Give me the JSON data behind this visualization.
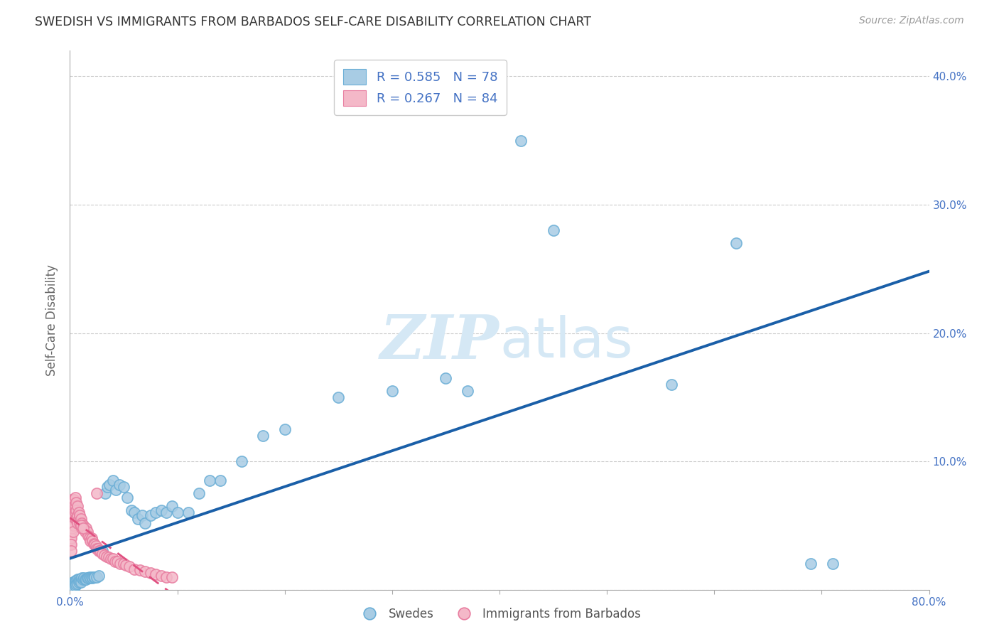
{
  "title": "SWEDISH VS IMMIGRANTS FROM BARBADOS SELF-CARE DISABILITY CORRELATION CHART",
  "source": "Source: ZipAtlas.com",
  "ylabel": "Self-Care Disability",
  "xlim": [
    0.0,
    0.8
  ],
  "ylim": [
    0.0,
    0.42
  ],
  "xticks": [
    0.0,
    0.1,
    0.2,
    0.3,
    0.4,
    0.5,
    0.6,
    0.7,
    0.8
  ],
  "xticklabels": [
    "0.0%",
    "",
    "",
    "",
    "",
    "",
    "",
    "",
    "80.0%"
  ],
  "yticks": [
    0.0,
    0.1,
    0.2,
    0.3,
    0.4
  ],
  "right_yticklabels": [
    "",
    "10.0%",
    "20.0%",
    "30.0%",
    "40.0%"
  ],
  "blue_color": "#a8cce4",
  "blue_edge_color": "#6aaed6",
  "pink_color": "#f4b8c8",
  "pink_edge_color": "#e87da0",
  "blue_line_color": "#1a5fa8",
  "pink_line_color": "#e05080",
  "watermark_color": "#d5e8f5",
  "swedes_x": [
    0.001,
    0.001,
    0.001,
    0.001,
    0.002,
    0.002,
    0.002,
    0.002,
    0.003,
    0.003,
    0.003,
    0.004,
    0.004,
    0.004,
    0.005,
    0.005,
    0.005,
    0.006,
    0.006,
    0.007,
    0.007,
    0.008,
    0.008,
    0.009,
    0.01,
    0.01,
    0.011,
    0.012,
    0.013,
    0.014,
    0.015,
    0.016,
    0.017,
    0.018,
    0.019,
    0.02,
    0.021,
    0.022,
    0.023,
    0.025,
    0.027,
    0.03,
    0.033,
    0.035,
    0.037,
    0.04,
    0.043,
    0.046,
    0.05,
    0.053,
    0.057,
    0.06,
    0.063,
    0.067,
    0.07,
    0.075,
    0.08,
    0.085,
    0.09,
    0.095,
    0.1,
    0.11,
    0.12,
    0.13,
    0.14,
    0.16,
    0.18,
    0.2,
    0.25,
    0.3,
    0.35,
    0.37,
    0.42,
    0.45,
    0.56,
    0.62,
    0.69,
    0.71
  ],
  "swedes_y": [
    0.004,
    0.003,
    0.002,
    0.001,
    0.005,
    0.004,
    0.003,
    0.002,
    0.006,
    0.005,
    0.003,
    0.006,
    0.004,
    0.002,
    0.007,
    0.005,
    0.003,
    0.007,
    0.004,
    0.008,
    0.005,
    0.008,
    0.006,
    0.007,
    0.008,
    0.006,
    0.009,
    0.008,
    0.009,
    0.008,
    0.008,
    0.009,
    0.009,
    0.01,
    0.009,
    0.01,
    0.009,
    0.01,
    0.01,
    0.01,
    0.011,
    0.03,
    0.075,
    0.08,
    0.082,
    0.085,
    0.078,
    0.082,
    0.08,
    0.072,
    0.062,
    0.06,
    0.055,
    0.058,
    0.052,
    0.058,
    0.06,
    0.062,
    0.06,
    0.065,
    0.06,
    0.06,
    0.075,
    0.085,
    0.085,
    0.1,
    0.12,
    0.125,
    0.15,
    0.155,
    0.165,
    0.155,
    0.35,
    0.28,
    0.16,
    0.27,
    0.02,
    0.02
  ],
  "barbados_x": [
    0.0005,
    0.0005,
    0.0007,
    0.001,
    0.001,
    0.001,
    0.001,
    0.001,
    0.001,
    0.001,
    0.0015,
    0.0015,
    0.002,
    0.002,
    0.002,
    0.002,
    0.002,
    0.003,
    0.003,
    0.003,
    0.003,
    0.003,
    0.003,
    0.004,
    0.004,
    0.004,
    0.005,
    0.005,
    0.005,
    0.005,
    0.006,
    0.006,
    0.006,
    0.007,
    0.007,
    0.007,
    0.008,
    0.008,
    0.009,
    0.009,
    0.01,
    0.01,
    0.011,
    0.011,
    0.012,
    0.013,
    0.014,
    0.015,
    0.016,
    0.017,
    0.018,
    0.019,
    0.02,
    0.021,
    0.022,
    0.023,
    0.024,
    0.025,
    0.026,
    0.027,
    0.028,
    0.03,
    0.032,
    0.034,
    0.036,
    0.038,
    0.04,
    0.042,
    0.044,
    0.047,
    0.05,
    0.052,
    0.055,
    0.06,
    0.065,
    0.07,
    0.075,
    0.08,
    0.085,
    0.09,
    0.095,
    0.01,
    0.012,
    0.025
  ],
  "barbados_y": [
    0.04,
    0.035,
    0.05,
    0.06,
    0.055,
    0.05,
    0.045,
    0.04,
    0.035,
    0.03,
    0.065,
    0.055,
    0.07,
    0.065,
    0.06,
    0.055,
    0.048,
    0.07,
    0.065,
    0.06,
    0.055,
    0.05,
    0.045,
    0.07,
    0.065,
    0.058,
    0.072,
    0.065,
    0.06,
    0.055,
    0.068,
    0.062,
    0.055,
    0.065,
    0.058,
    0.052,
    0.06,
    0.055,
    0.058,
    0.052,
    0.055,
    0.05,
    0.052,
    0.048,
    0.05,
    0.048,
    0.045,
    0.048,
    0.045,
    0.042,
    0.04,
    0.038,
    0.04,
    0.038,
    0.036,
    0.035,
    0.034,
    0.032,
    0.032,
    0.03,
    0.03,
    0.028,
    0.027,
    0.026,
    0.025,
    0.024,
    0.024,
    0.022,
    0.022,
    0.02,
    0.02,
    0.019,
    0.018,
    0.016,
    0.015,
    0.014,
    0.013,
    0.012,
    0.011,
    0.01,
    0.01,
    0.05,
    0.048,
    0.075
  ],
  "legend_label1": "R = 0.585   N = 78",
  "legend_label2": "R = 0.267   N = 84",
  "bottom_label1": "Swedes",
  "bottom_label2": "Immigrants from Barbados"
}
